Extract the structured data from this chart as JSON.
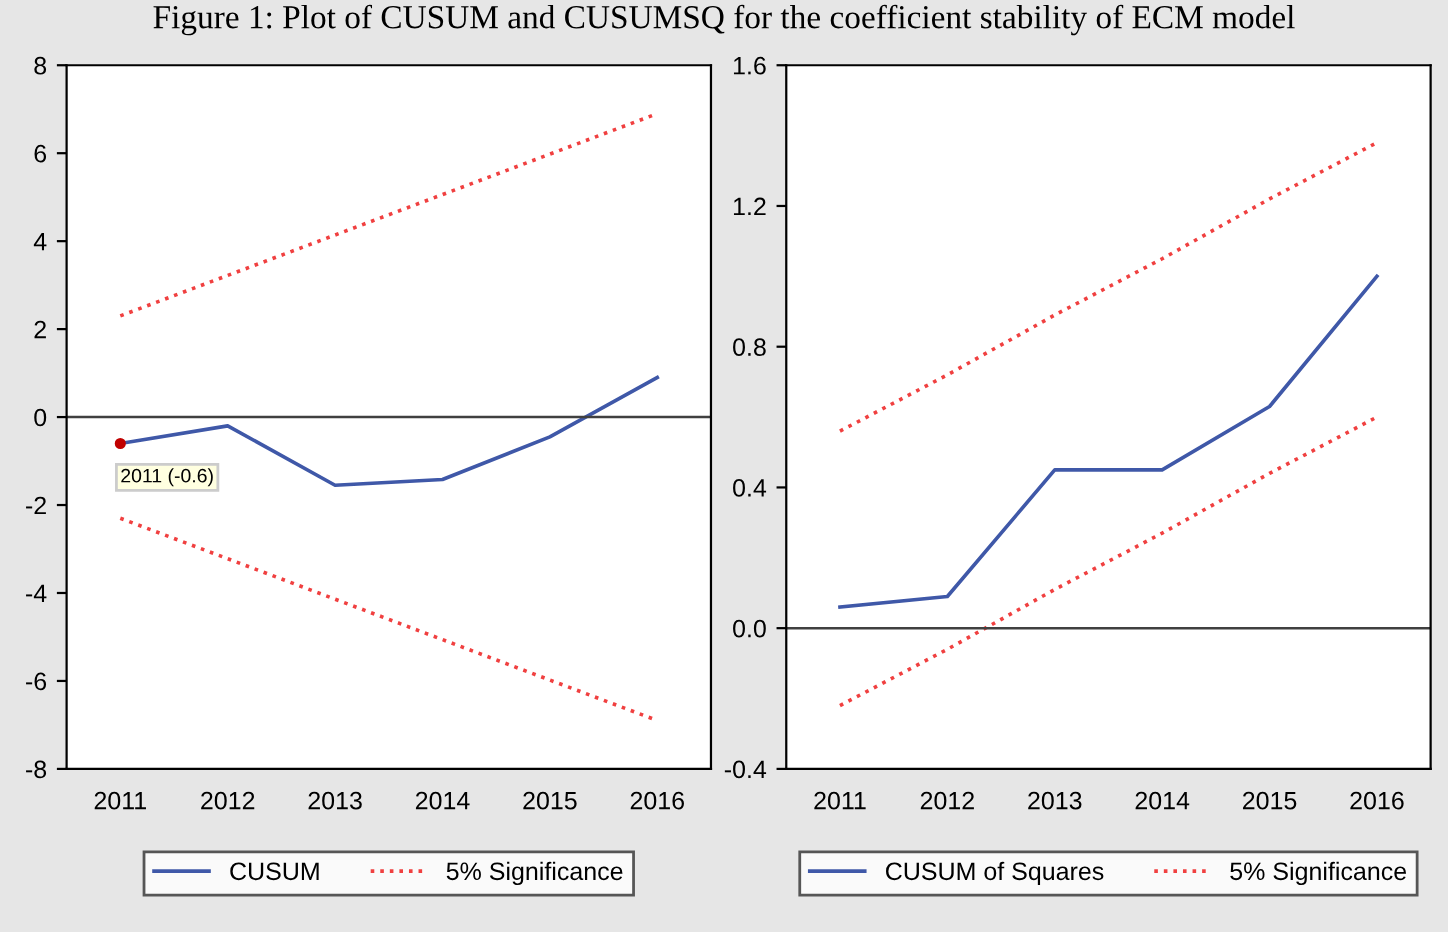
{
  "chart_data": [
    {
      "type": "line",
      "title": "Figure 1: Plot of CUSUM and CUSUMSQ for the coefficient stability of ECM model",
      "categories": [
        "2011",
        "2012",
        "2013",
        "2014",
        "2015",
        "2016"
      ],
      "series": [
        {
          "name": "CUSUM",
          "color": "#3f58a8",
          "values": [
            -0.6,
            -0.2,
            -1.55,
            -1.42,
            -0.45,
            0.9
          ],
          "line_style": "solid"
        },
        {
          "name": "5% Significance",
          "color": "#f04040",
          "values": [
            2.3,
            3.22,
            4.14,
            5.06,
            5.98,
            6.9
          ],
          "line_style": "dotted"
        },
        {
          "color": "#f04040",
          "values": [
            -2.3,
            -3.22,
            -4.14,
            -5.06,
            -5.98,
            -6.9
          ],
          "line_style": "dotted"
        }
      ],
      "ylim": [
        -8,
        8
      ],
      "yticks": [
        -8,
        -6,
        -4,
        -2,
        0,
        2,
        4,
        6,
        8
      ],
      "ref_lines": [
        {
          "axis": "y",
          "value": 0,
          "color": "#404040"
        }
      ],
      "annotations": [
        {
          "text": "2011 (-0.6)",
          "x": "2011",
          "y": -0.6
        }
      ],
      "grid": false,
      "legend": "bottom"
    },
    {
      "type": "line",
      "categories": [
        "2011",
        "2012",
        "2013",
        "2014",
        "2015",
        "2016"
      ],
      "series": [
        {
          "name": "CUSUM of Squares",
          "color": "#3f58a8",
          "values": [
            0.06,
            0.09,
            0.45,
            0.45,
            0.63,
            1.0
          ],
          "line_style": "solid"
        },
        {
          "name": "5% Significance",
          "color": "#f04040",
          "values": [
            0.56,
            0.72,
            0.89,
            1.05,
            1.22,
            1.38
          ],
          "line_style": "dotted"
        },
        {
          "color": "#f04040",
          "values": [
            -0.22,
            -0.06,
            0.11,
            0.27,
            0.44,
            0.6
          ],
          "line_style": "dotted"
        }
      ],
      "ylim": [
        -0.4,
        1.6
      ],
      "yticks": [
        {
          "value": -0.4,
          "label": "-0.4"
        },
        {
          "value": 0,
          "label": "0.0"
        },
        {
          "value": 0.4,
          "label": "0.4"
        },
        {
          "value": 0.8,
          "label": "0.8"
        },
        {
          "value": 1.2,
          "label": "1.2"
        },
        {
          "value": 1.6,
          "label": "1.6"
        }
      ],
      "ref_lines": [
        {
          "axis": "y",
          "value": 0,
          "color": "#404040"
        }
      ],
      "grid": false,
      "legend": "bottom"
    }
  ]
}
